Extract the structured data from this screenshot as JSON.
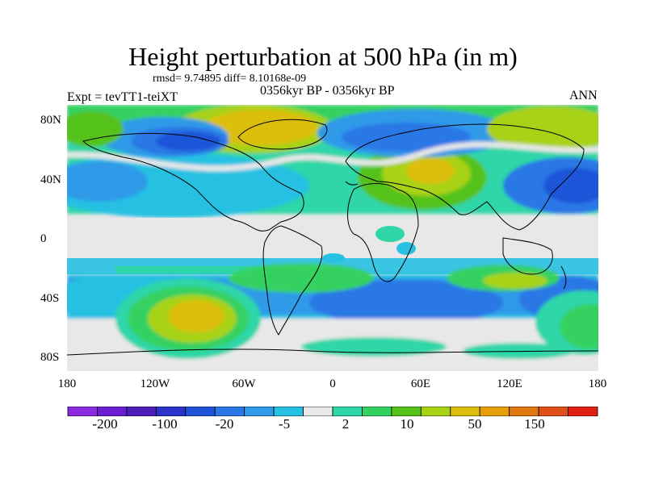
{
  "title": "Height perturbation at 500 hPa (in m)",
  "stats": "rmsd= 9.74895 diff= 8.10168e-09",
  "period": "0356kyr BP - 0356kyr BP",
  "experiment": "Expt = tevTT1-teiXT",
  "season": "ANN",
  "lat_labels": [
    "80N",
    "40N",
    "0",
    "40S",
    "80S"
  ],
  "lon_labels": [
    "180",
    "120W",
    "60W",
    "0",
    "60E",
    "120E",
    "180"
  ],
  "colorbar": {
    "colors": [
      "#8a2be2",
      "#6a1ed0",
      "#4b1fb8",
      "#2a34c8",
      "#1f54d8",
      "#2a77e6",
      "#2f9ae8",
      "#26c1e2",
      "#e8e8e8",
      "#2ed6a8",
      "#35d160",
      "#55c21a",
      "#a8d214",
      "#dcbf0a",
      "#e8a00a",
      "#e07812",
      "#e05018",
      "#e02010"
    ],
    "labels": [
      "-200",
      "-100",
      "-20",
      "-5",
      "2",
      "10",
      "50",
      "150"
    ]
  },
  "colors": {
    "background_gray": "#e8e8e8",
    "coast": "#000000"
  }
}
